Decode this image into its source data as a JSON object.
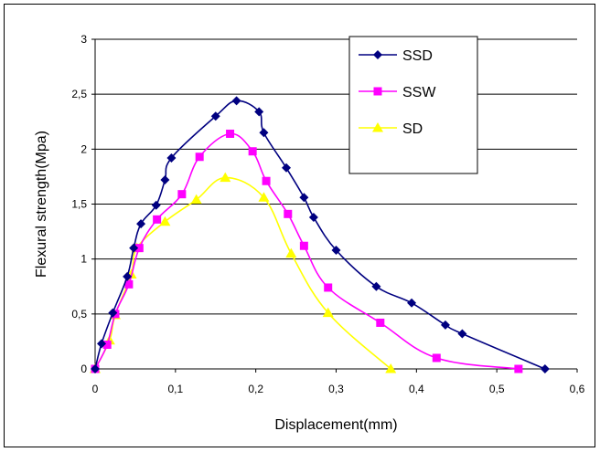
{
  "chart_data": {
    "type": "line",
    "title": "",
    "xlabel": "Displacement(mm)",
    "ylabel": "Flexural strength(Mpa)",
    "xlim": [
      0,
      0.6
    ],
    "ylim": [
      0,
      3
    ],
    "x_ticks": [
      "0",
      "0,1",
      "0,2",
      "0,3",
      "0,4",
      "0,5",
      "0,6"
    ],
    "y_ticks": [
      "0",
      "0,5",
      "1",
      "1,5",
      "2",
      "2,5",
      "3"
    ],
    "grid": "horizontal",
    "legend_position": "top-right",
    "series": [
      {
        "name": "SSD",
        "color": "#000080",
        "marker": "diamond",
        "points": [
          [
            0,
            0
          ],
          [
            0.008,
            0.23
          ],
          [
            0.022,
            0.51
          ],
          [
            0.04,
            0.84
          ],
          [
            0.048,
            1.1
          ],
          [
            0.057,
            1.32
          ],
          [
            0.076,
            1.49
          ],
          [
            0.087,
            1.72
          ],
          [
            0.095,
            1.92
          ],
          [
            0.15,
            2.3
          ],
          [
            0.176,
            2.44
          ],
          [
            0.204,
            2.34
          ],
          [
            0.21,
            2.15
          ],
          [
            0.238,
            1.83
          ],
          [
            0.26,
            1.56
          ],
          [
            0.272,
            1.38
          ],
          [
            0.3,
            1.08
          ],
          [
            0.35,
            0.75
          ],
          [
            0.394,
            0.6
          ],
          [
            0.436,
            0.4
          ],
          [
            0.457,
            0.32
          ],
          [
            0.56,
            0
          ]
        ]
      },
      {
        "name": "SSW",
        "color": "#ff00ff",
        "marker": "square",
        "points": [
          [
            0,
            0
          ],
          [
            0.015,
            0.22
          ],
          [
            0.025,
            0.5
          ],
          [
            0.042,
            0.77
          ],
          [
            0.055,
            1.1
          ],
          [
            0.077,
            1.36
          ],
          [
            0.108,
            1.59
          ],
          [
            0.13,
            1.93
          ],
          [
            0.168,
            2.14
          ],
          [
            0.196,
            1.98
          ],
          [
            0.213,
            1.71
          ],
          [
            0.24,
            1.41
          ],
          [
            0.26,
            1.12
          ],
          [
            0.29,
            0.74
          ],
          [
            0.355,
            0.42
          ],
          [
            0.425,
            0.1
          ],
          [
            0.527,
            0
          ]
        ]
      },
      {
        "name": "SD",
        "color": "#ffff00",
        "marker": "triangle",
        "points": [
          [
            0,
            0
          ],
          [
            0.018,
            0.26
          ],
          [
            0.025,
            0.49
          ],
          [
            0.045,
            0.86
          ],
          [
            0.052,
            1.1
          ],
          [
            0.087,
            1.34
          ],
          [
            0.126,
            1.54
          ],
          [
            0.162,
            1.74
          ],
          [
            0.21,
            1.56
          ],
          [
            0.244,
            1.05
          ],
          [
            0.29,
            0.51
          ],
          [
            0.368,
            0
          ]
        ]
      }
    ]
  }
}
